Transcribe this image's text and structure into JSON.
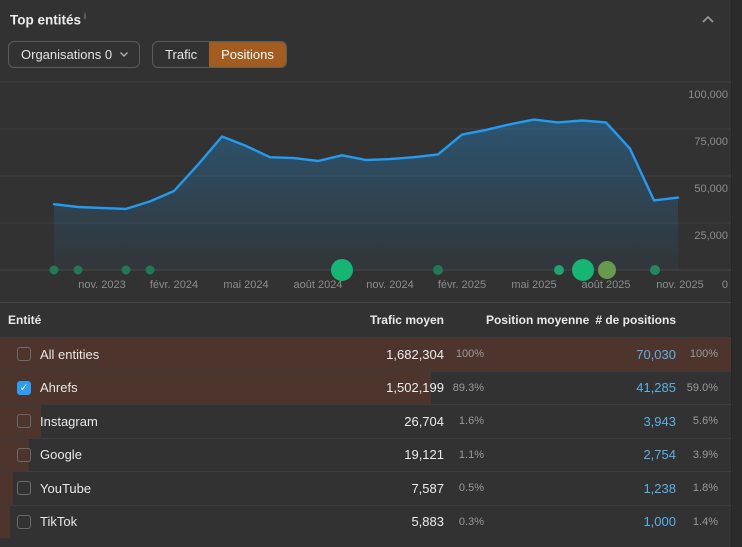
{
  "header": {
    "title": "Top entités",
    "info_marker": "i"
  },
  "controls": {
    "organisations_button": {
      "label": "Organisations 0"
    },
    "metric_toggle": {
      "options": [
        {
          "label": "Trafic",
          "selected": false
        },
        {
          "label": "Positions",
          "selected": true
        }
      ],
      "selected_color": "#a35c20"
    }
  },
  "chart_data": {
    "type": "area",
    "title": "Positions over time",
    "x": [
      "sept. 2023",
      "oct. 2023",
      "nov. 2023",
      "déc. 2023",
      "janv. 2024",
      "févr. 2024",
      "mars 2024",
      "avr. 2024",
      "mai 2024",
      "juin 2024",
      "juil. 2024",
      "août 2024",
      "sept. 2024",
      "oct. 2024",
      "nov. 2024",
      "déc. 2024",
      "janv. 2025",
      "févr. 2025",
      "mars 2025",
      "avr. 2025",
      "mai 2025",
      "juin 2025",
      "juil. 2025",
      "août 2025",
      "sept. 2025",
      "oct. 2025",
      "nov. 2025"
    ],
    "values": [
      35000,
      33500,
      33000,
      32500,
      36500,
      42000,
      56000,
      71000,
      66000,
      60000,
      59500,
      58000,
      61000,
      58500,
      59000,
      60000,
      61500,
      72000,
      74500,
      77500,
      80000,
      78500,
      79500,
      78500,
      64500,
      37000,
      38500
    ],
    "x_tick_labels": [
      "nov. 2023",
      "févr. 2024",
      "mai 2024",
      "août 2024",
      "nov. 2024",
      "févr. 2025",
      "mai 2025",
      "août 2025",
      "nov. 2025"
    ],
    "y_tick_labels": [
      "100,000",
      "75,000",
      "50,000",
      "25,000",
      "0"
    ],
    "ylim": [
      0,
      100000
    ],
    "grid": true,
    "legend": "none",
    "line_color": "#229bf0",
    "events": [
      {
        "x": 54,
        "r": 4.5,
        "color": "#207952"
      },
      {
        "x": 78,
        "r": 4.5,
        "color": "#207952"
      },
      {
        "x": 126,
        "r": 4.5,
        "color": "#207952"
      },
      {
        "x": 150,
        "r": 4.5,
        "color": "#207952"
      },
      {
        "x": 342,
        "r": 11,
        "color": "#15b573"
      },
      {
        "x": 438,
        "r": 5,
        "color": "#207952"
      },
      {
        "x": 559,
        "r": 5,
        "color": "#1da56b"
      },
      {
        "x": 583,
        "r": 11,
        "color": "#15b573"
      },
      {
        "x": 607,
        "r": 9,
        "color": "#68994f"
      },
      {
        "x": 655,
        "r": 5,
        "color": "#24885c"
      }
    ]
  },
  "table": {
    "columns": {
      "entity": "Entité",
      "traffic": "Trafic moyen",
      "avg_position": "Position moyenne",
      "num_positions": "# de positions"
    },
    "rows": [
      {
        "name": "All entities",
        "checked": false,
        "traffic": "1,682,304",
        "traffic_pct": "100%",
        "positions": "70,030",
        "positions_pct": "100%",
        "bar_pct": 100
      },
      {
        "name": "Ahrefs",
        "checked": true,
        "traffic": "1,502,199",
        "traffic_pct": "89.3%",
        "positions": "41,285",
        "positions_pct": "59.0%",
        "bar_pct": 59
      },
      {
        "name": "Instagram",
        "checked": false,
        "traffic": "26,704",
        "traffic_pct": "1.6%",
        "positions": "3,943",
        "positions_pct": "5.6%",
        "bar_pct": 5.6
      },
      {
        "name": "Google",
        "checked": false,
        "traffic": "19,121",
        "traffic_pct": "1.1%",
        "positions": "2,754",
        "positions_pct": "3.9%",
        "bar_pct": 3.9
      },
      {
        "name": "YouTube",
        "checked": false,
        "traffic": "7,587",
        "traffic_pct": "0.5%",
        "positions": "1,238",
        "positions_pct": "1.8%",
        "bar_pct": 1.8
      },
      {
        "name": "TikTok",
        "checked": false,
        "traffic": "5,883",
        "traffic_pct": "0.3%",
        "positions": "1,000",
        "positions_pct": "1.4%",
        "bar_pct": 1.4
      }
    ]
  },
  "colors": {
    "background": "#323232",
    "accent_orange": "#a35c20",
    "line_blue": "#229bf0",
    "link_blue": "#58b1e4",
    "bar_brown": "#4d352e",
    "checkbox_blue": "#2b9df4",
    "event_green": "#15b573",
    "grid": "#3e3e3e",
    "axis_text": "#8d8d8d"
  }
}
